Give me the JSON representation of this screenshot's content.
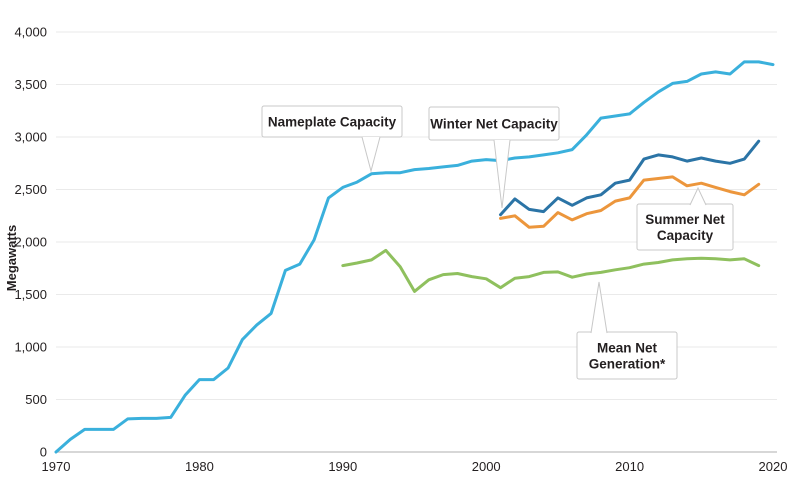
{
  "chart_data": {
    "type": "line",
    "title": "",
    "xlabel": "",
    "ylabel": "Megawatts",
    "xlim": [
      1970,
      2020
    ],
    "ylim": [
      0,
      4000
    ],
    "grid": "horizontal",
    "legend_position": "inline-callouts",
    "x_ticks": [
      {
        "value": 1970,
        "label": "1970"
      },
      {
        "value": 1980,
        "label": "1980"
      },
      {
        "value": 1990,
        "label": "1990"
      },
      {
        "value": 2000,
        "label": "2000"
      },
      {
        "value": 2010,
        "label": "2010"
      },
      {
        "value": 2020,
        "label": "2020"
      }
    ],
    "y_ticks": [
      {
        "value": 0,
        "label": "0"
      },
      {
        "value": 500,
        "label": "500"
      },
      {
        "value": 1000,
        "label": "1,000"
      },
      {
        "value": 1500,
        "label": "1,500"
      },
      {
        "value": 2000,
        "label": "2,000"
      },
      {
        "value": 2500,
        "label": "2,500"
      },
      {
        "value": 3000,
        "label": "3,000"
      },
      {
        "value": 3500,
        "label": "3,500"
      },
      {
        "value": 4000,
        "label": "4,000"
      }
    ],
    "series": [
      {
        "name": "Nameplate Capacity",
        "color": "#3ab0dc",
        "start_year": 1970,
        "values": [
          0,
          120,
          215,
          215,
          215,
          315,
          320,
          320,
          330,
          540,
          690,
          690,
          800,
          1070,
          1210,
          1320,
          1730,
          1790,
          2020,
          2420,
          2520,
          2570,
          2650,
          2660,
          2660,
          2690,
          2700,
          2715,
          2730,
          2770,
          2785,
          2775,
          2800,
          2810,
          2830,
          2850,
          2880,
          3020,
          3180,
          3200,
          3220,
          3330,
          3430,
          3510,
          3530,
          3600,
          3620,
          3600,
          3715,
          3715,
          3690
        ]
      },
      {
        "name": "Winter Net Capacity",
        "color": "#2b74a6",
        "start_year": 2001,
        "values": [
          2260,
          2410,
          2310,
          2290,
          2420,
          2350,
          2420,
          2450,
          2560,
          2590,
          2790,
          2830,
          2810,
          2770,
          2800,
          2770,
          2750,
          2790,
          2960
        ]
      },
      {
        "name": "Summer Net Capacity",
        "color": "#ec963c",
        "start_year": 2001,
        "values": [
          2225,
          2250,
          2140,
          2150,
          2280,
          2210,
          2270,
          2300,
          2390,
          2420,
          2590,
          2605,
          2620,
          2535,
          2560,
          2520,
          2480,
          2450,
          2550
        ]
      },
      {
        "name": "Mean Net Generation*",
        "color": "#8fc05e",
        "start_year": 1990,
        "values": [
          1775,
          1800,
          1830,
          1920,
          1765,
          1530,
          1640,
          1690,
          1700,
          1670,
          1650,
          1565,
          1655,
          1670,
          1710,
          1715,
          1665,
          1695,
          1710,
          1735,
          1755,
          1790,
          1805,
          1830,
          1840,
          1845,
          1840,
          1830,
          1840,
          1775
        ]
      }
    ],
    "annotations": [
      {
        "series": "Nameplate Capacity",
        "lines": [
          "Nameplate Capacity"
        ]
      },
      {
        "series": "Winter Net Capacity",
        "lines": [
          "Winter Net Capacity"
        ]
      },
      {
        "series": "Summer Net Capacity",
        "lines": [
          "Summer Net",
          "Capacity"
        ]
      },
      {
        "series": "Mean Net Generation*",
        "lines": [
          "Mean Net",
          "Generation*"
        ]
      }
    ],
    "colors": {
      "background": "#ffffff",
      "gridline": "#eaeaea",
      "axis_line": "#bfbfbf",
      "callout_border": "#c8c8c8",
      "callout_fill": "#ffffff",
      "text": "#231f20"
    }
  }
}
